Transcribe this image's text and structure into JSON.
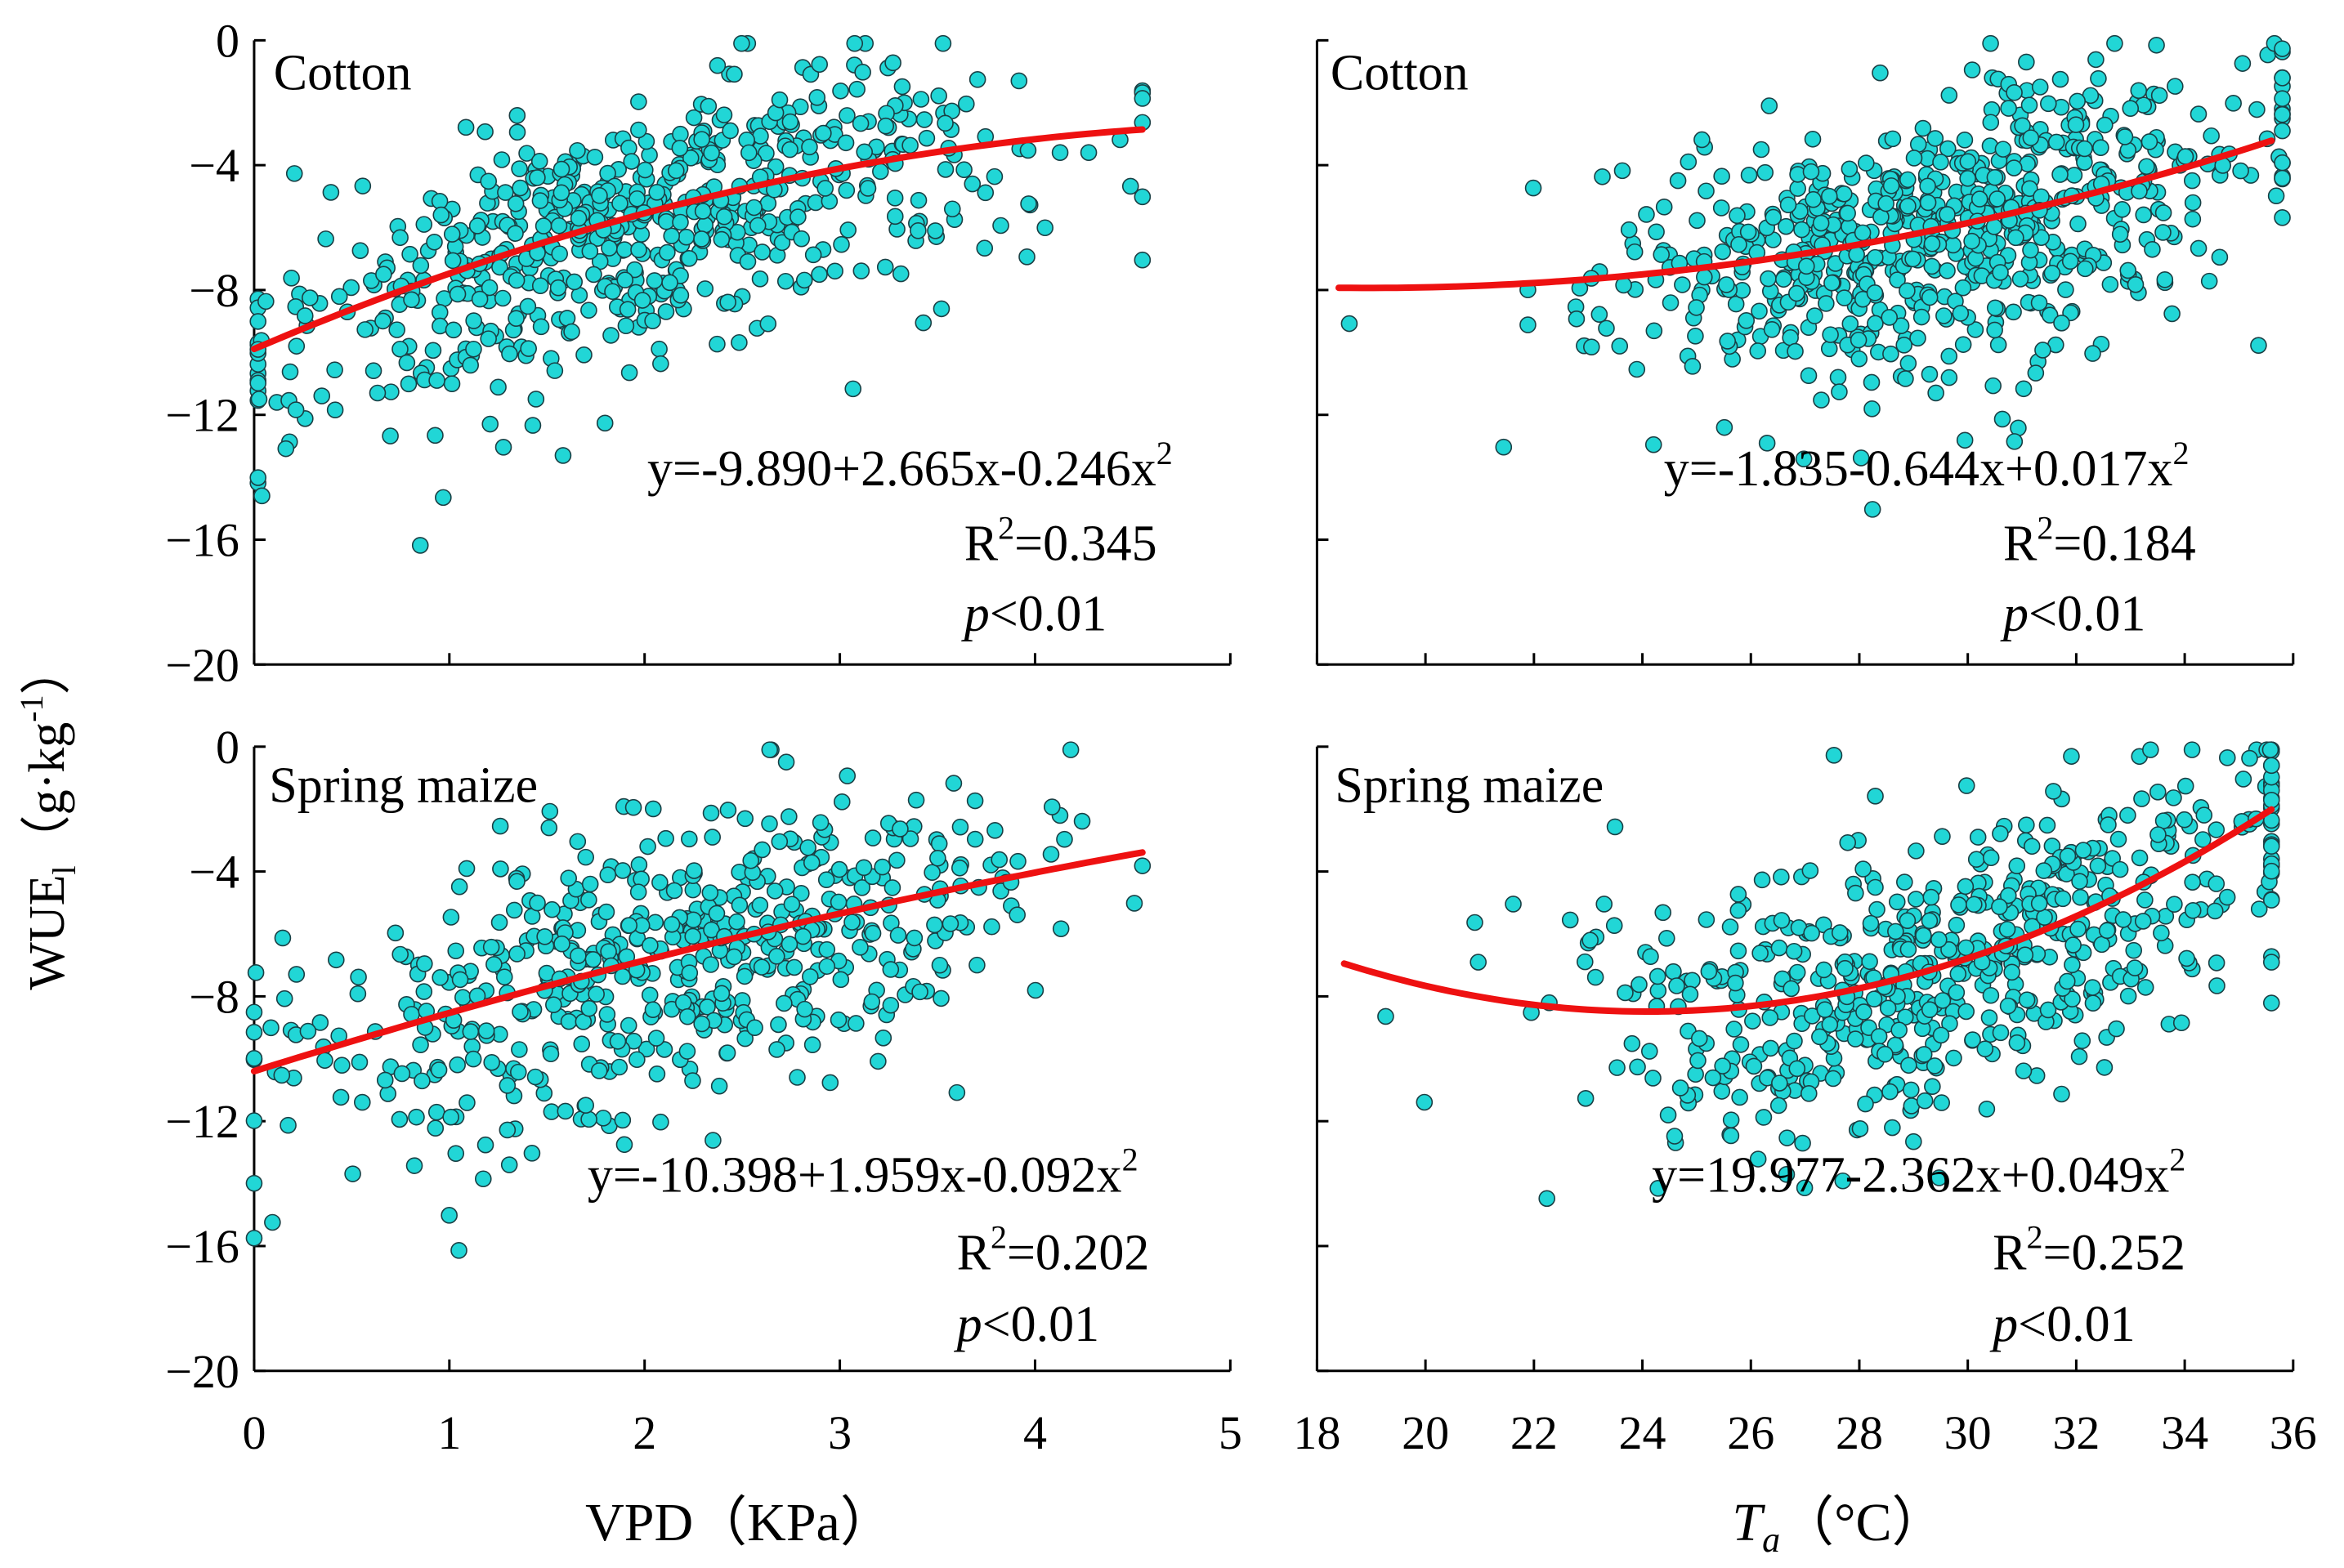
{
  "y_axis_label": {
    "main": "WUE",
    "sub": "l",
    "paren_open": "（",
    "unit_text": "g·kg",
    "unit_exp": "-1",
    "paren_close": "）"
  },
  "x_labels": {
    "vpd": "VPD（KPa）",
    "ta": {
      "main": "T",
      "sub": "a",
      "unit": "（°C）"
    }
  },
  "chart_data": [
    {
      "type": "scatter",
      "id": "cotton_vpd",
      "title": "Cotton",
      "xlabel": "VPD（KPa）",
      "ylabel": "WUE_l（g·kg-1）",
      "xlim": [
        0,
        5
      ],
      "ylim": [
        -20,
        0
      ],
      "xticks": [
        "0",
        "1",
        "2",
        "3",
        "4",
        "5"
      ],
      "yticks": [
        "0",
        "-4",
        "-8",
        "-12",
        "-16",
        "-20"
      ],
      "show_xticks": false,
      "fit": {
        "a": -9.89,
        "b": 2.665,
        "c": -0.246,
        "x_range": [
          0,
          4.55
        ]
      },
      "equation": {
        "text": "y=-9.890+2.665x-0.246x",
        "exp": "2"
      },
      "r2": {
        "label": "R",
        "exp": "2",
        "value": "=0.345"
      },
      "p": {
        "label": "p",
        "value": "<0.01"
      },
      "scatter_gen": {
        "n": 640,
        "seed": 11,
        "x_dist": "vpd",
        "x_min": 0.02,
        "x_max": 4.55,
        "sd": 1.75,
        "skew": -1.6
      },
      "points": []
    },
    {
      "type": "scatter",
      "id": "cotton_ta",
      "title": "Cotton",
      "xlabel": "Ta（°C）",
      "ylabel": "WUE_l（g·kg-1）",
      "xlim": [
        18,
        36
      ],
      "ylim": [
        -20,
        0
      ],
      "xticks": [
        "18",
        "20",
        "22",
        "24",
        "26",
        "28",
        "30",
        "32",
        "34",
        "36"
      ],
      "yticks": [],
      "show_xticks": false,
      "fit": {
        "a": -1.835,
        "b": -0.644,
        "c": 0.017,
        "x_range": [
          18.4,
          35.6
        ]
      },
      "equation": {
        "text": "y=-1.835-0.644x+0.017x",
        "exp": "2"
      },
      "r2": {
        "label": "R",
        "exp": "2",
        "value": "=0.184"
      },
      "p": {
        "label": "p",
        "value": "<0.01"
      },
      "scatter_gen": {
        "n": 700,
        "seed": 23,
        "x_dist": "ta_cotton",
        "x_min": 18.4,
        "x_max": 35.8,
        "sd": 1.85,
        "skew": -1.2
      },
      "points": []
    },
    {
      "type": "scatter",
      "id": "maize_vpd",
      "title": "Spring maize",
      "xlabel": "VPD（KPa）",
      "ylabel": "WUE_l（g·kg-1）",
      "xlim": [
        0,
        5
      ],
      "ylim": [
        -20,
        0
      ],
      "xticks": [
        "0",
        "1",
        "2",
        "3",
        "4",
        "5"
      ],
      "yticks": [
        "0",
        "-4",
        "-8",
        "-12",
        "-16",
        "-20"
      ],
      "show_xticks": true,
      "fit": {
        "a": -10.398,
        "b": 1.959,
        "c": -0.092,
        "x_range": [
          0,
          4.55
        ]
      },
      "equation": {
        "text": "y=-10.398+1.959x-0.092x",
        "exp": "2"
      },
      "r2": {
        "label": "R",
        "exp": "2",
        "value": "=0.202"
      },
      "p": {
        "label": "p",
        "value": "<0.01"
      },
      "scatter_gen": {
        "n": 560,
        "seed": 37,
        "x_dist": "vpd_maize",
        "x_min": 0.0,
        "x_max": 4.55,
        "sd": 2.1,
        "skew": -1.0
      },
      "points": []
    },
    {
      "type": "scatter",
      "id": "maize_ta",
      "title": "Spring maize",
      "xlabel": "Ta（°C）",
      "ylabel": "WUE_l（g·kg-1）",
      "xlim": [
        18,
        36
      ],
      "ylim": [
        -20,
        0
      ],
      "xticks": [
        "18",
        "20",
        "22",
        "24",
        "26",
        "28",
        "30",
        "32",
        "34",
        "36"
      ],
      "yticks": [],
      "show_xticks": true,
      "fit": {
        "a": 19.977,
        "b": -2.362,
        "c": 0.049,
        "x_range": [
          18.5,
          35.6
        ]
      },
      "equation": {
        "text": "y=19.977-2.362x+0.049x",
        "exp": "2"
      },
      "r2": {
        "label": "R",
        "exp": "2",
        "value": "=0.252"
      },
      "p": {
        "label": "p",
        "value": "<0.01"
      },
      "scatter_gen": {
        "n": 600,
        "seed": 51,
        "x_dist": "ta_maize",
        "x_min": 18.4,
        "x_max": 35.6,
        "sd": 2.0,
        "skew": -1.1
      },
      "points": []
    }
  ]
}
